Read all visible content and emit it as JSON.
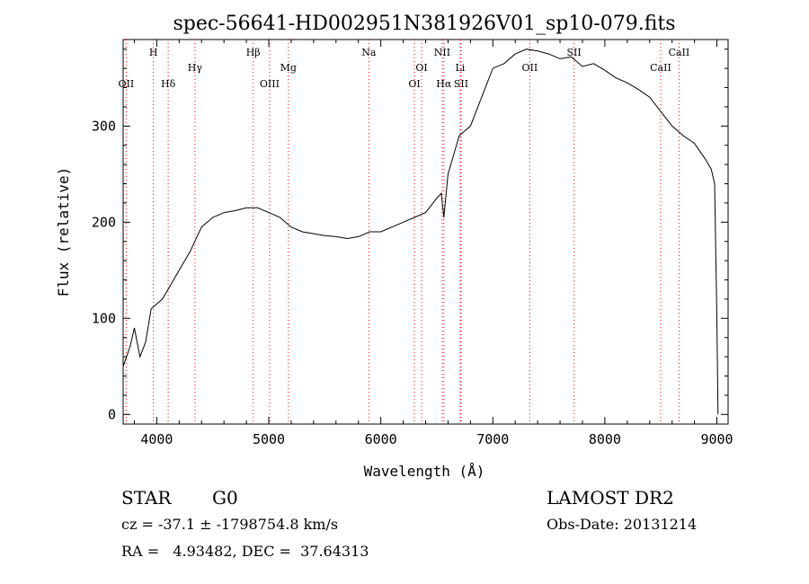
{
  "chart_data": {
    "type": "line",
    "title": "spec-56641-HD002951N381926V01_sp10-079.fits",
    "xlabel": "Wavelength (Å)",
    "ylabel": "Flux (relative)",
    "xlim": [
      3700,
      9100
    ],
    "ylim": [
      -10,
      390
    ],
    "xticks": [
      4000,
      5000,
      6000,
      7000,
      8000,
      9000
    ],
    "yticks": [
      0,
      100,
      200,
      300
    ],
    "grid": false,
    "line_color": "#000000",
    "marker_line_color": "#ff0000",
    "series": [
      {
        "x": [
          3700,
          3760,
          3800,
          3850,
          3900,
          3950,
          4000,
          4050,
          4100,
          4200,
          4300,
          4400,
          4500,
          4600,
          4700,
          4800,
          4900,
          5000,
          5100,
          5200,
          5300,
          5400,
          5500,
          5600,
          5700,
          5800,
          5900,
          6000,
          6100,
          6200,
          6300,
          6400,
          6500,
          6540,
          6563,
          6600,
          6700,
          6800,
          6900,
          7000,
          7100,
          7200,
          7300,
          7400,
          7500,
          7600,
          7700,
          7800,
          7900,
          8000,
          8100,
          8200,
          8300,
          8400,
          8500,
          8600,
          8700,
          8800,
          8900,
          8950,
          8980,
          9000,
          9010
        ],
        "y": [
          50,
          70,
          90,
          60,
          75,
          110,
          115,
          120,
          130,
          150,
          170,
          195,
          205,
          210,
          212,
          215,
          215,
          210,
          205,
          195,
          190,
          188,
          186,
          185,
          183,
          185,
          190,
          190,
          195,
          200,
          205,
          210,
          225,
          230,
          205,
          250,
          290,
          300,
          330,
          360,
          365,
          375,
          380,
          378,
          375,
          370,
          372,
          362,
          365,
          358,
          350,
          345,
          338,
          330,
          315,
          300,
          290,
          282,
          265,
          255,
          240,
          100,
          0
        ]
      }
    ],
    "line_markers": [
      {
        "label": "OII",
        "x": 3727,
        "row": 3
      },
      {
        "label": "H",
        "x": 3970,
        "row": 1
      },
      {
        "label": "Hδ",
        "x": 4102,
        "row": 3
      },
      {
        "label": "Hγ",
        "x": 4341,
        "row": 2
      },
      {
        "label": "Hβ",
        "x": 4861,
        "row": 1
      },
      {
        "label": "OIII",
        "x": 5007,
        "row": 3
      },
      {
        "label": "Mg",
        "x": 5175,
        "row": 2
      },
      {
        "label": "Na",
        "x": 5893,
        "row": 1
      },
      {
        "label": "OI",
        "x": 6300,
        "row": 3
      },
      {
        "label": "OI",
        "x": 6364,
        "row": 2
      },
      {
        "label": "NII",
        "x": 6548,
        "row": 1
      },
      {
        "label": "Hα",
        "x": 6563,
        "row": 3
      },
      {
        "label": "Li",
        "x": 6708,
        "row": 2
      },
      {
        "label": "SII",
        "x": 6717,
        "row": 3
      },
      {
        "label": "OII",
        "x": 7330,
        "row": 2
      },
      {
        "label": "SII",
        "x": 7725,
        "row": 1
      },
      {
        "label": "CaII",
        "x": 8498,
        "row": 2
      },
      {
        "label": "CaII",
        "x": 8662,
        "row": 1
      }
    ]
  },
  "info": {
    "class_label": "STAR",
    "subclass": "G0",
    "release": "LAMOST DR2",
    "cz_line": "cz = -37.1 ± -1798754.8 km/s",
    "obs_date_line": "Obs-Date: 20131214",
    "radec_line": "RA =   4.93482, DEC =  37.64313"
  }
}
